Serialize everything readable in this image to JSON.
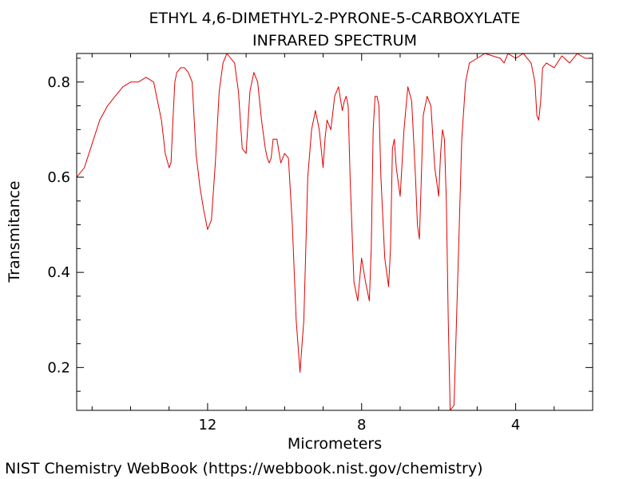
{
  "chart_data": {
    "type": "line",
    "title": "ETHYL 4,6-DIMETHYL-2-PYRONE-5-CARBOXYLATE",
    "subtitle": "INFRARED SPECTRUM",
    "xlabel": "Micrometers",
    "ylabel": "Transmitance",
    "x_reversed": true,
    "xlim": [
      15.4,
      2.0
    ],
    "ylim": [
      0.11,
      0.86
    ],
    "x_ticks": [
      12,
      8,
      4
    ],
    "y_ticks": [
      0.2,
      0.4,
      0.6,
      0.8
    ],
    "x_tick_labels": [
      "12",
      "8",
      "4"
    ],
    "y_tick_labels": [
      "0.2",
      "0.4",
      "0.6",
      "0.8"
    ],
    "grid": false,
    "series": [
      {
        "color": "#e00000",
        "x": [
          15.4,
          15.2,
          15.0,
          14.8,
          14.6,
          14.4,
          14.2,
          14.0,
          13.8,
          13.6,
          13.4,
          13.2,
          13.1,
          13.0,
          12.95,
          12.9,
          12.85,
          12.8,
          12.7,
          12.6,
          12.5,
          12.4,
          12.3,
          12.2,
          12.1,
          12.0,
          11.9,
          11.8,
          11.7,
          11.6,
          11.55,
          11.5,
          11.45,
          11.4,
          11.3,
          11.2,
          11.1,
          11.0,
          10.9,
          10.8,
          10.7,
          10.6,
          10.5,
          10.45,
          10.4,
          10.35,
          10.3,
          10.2,
          10.1,
          10.0,
          9.9,
          9.8,
          9.7,
          9.6,
          9.5,
          9.4,
          9.3,
          9.2,
          9.1,
          9.05,
          9.0,
          8.95,
          8.9,
          8.8,
          8.7,
          8.6,
          8.5,
          8.45,
          8.4,
          8.35,
          8.3,
          8.2,
          8.1,
          8.0,
          7.9,
          7.8,
          7.75,
          7.7,
          7.65,
          7.6,
          7.55,
          7.5,
          7.4,
          7.3,
          7.25,
          7.2,
          7.15,
          7.1,
          7.0,
          6.9,
          6.8,
          6.7,
          6.6,
          6.55,
          6.5,
          6.4,
          6.3,
          6.2,
          6.1,
          6.0,
          5.95,
          5.9,
          5.85,
          5.8,
          5.75,
          5.7,
          5.6,
          5.5,
          5.4,
          5.3,
          5.2,
          5.0,
          4.8,
          4.6,
          4.4,
          4.3,
          4.2,
          4.0,
          3.8,
          3.6,
          3.5,
          3.45,
          3.4,
          3.35,
          3.3,
          3.2,
          3.0,
          2.8,
          2.6,
          2.4,
          2.2,
          2.0
        ],
        "y": [
          0.6,
          0.62,
          0.67,
          0.72,
          0.75,
          0.77,
          0.79,
          0.8,
          0.8,
          0.81,
          0.8,
          0.72,
          0.65,
          0.62,
          0.63,
          0.72,
          0.8,
          0.82,
          0.83,
          0.83,
          0.82,
          0.8,
          0.65,
          0.58,
          0.53,
          0.49,
          0.51,
          0.63,
          0.78,
          0.84,
          0.85,
          0.86,
          0.855,
          0.85,
          0.84,
          0.78,
          0.66,
          0.65,
          0.78,
          0.82,
          0.8,
          0.72,
          0.66,
          0.64,
          0.63,
          0.64,
          0.68,
          0.68,
          0.63,
          0.65,
          0.64,
          0.5,
          0.3,
          0.19,
          0.3,
          0.6,
          0.7,
          0.74,
          0.7,
          0.66,
          0.62,
          0.68,
          0.72,
          0.7,
          0.77,
          0.79,
          0.74,
          0.76,
          0.77,
          0.75,
          0.6,
          0.38,
          0.34,
          0.43,
          0.38,
          0.34,
          0.45,
          0.7,
          0.77,
          0.77,
          0.75,
          0.6,
          0.43,
          0.37,
          0.45,
          0.66,
          0.68,
          0.62,
          0.56,
          0.7,
          0.79,
          0.76,
          0.6,
          0.5,
          0.47,
          0.73,
          0.77,
          0.75,
          0.62,
          0.56,
          0.65,
          0.7,
          0.68,
          0.55,
          0.3,
          0.11,
          0.12,
          0.4,
          0.68,
          0.8,
          0.84,
          0.85,
          0.86,
          0.855,
          0.85,
          0.84,
          0.86,
          0.85,
          0.86,
          0.84,
          0.8,
          0.73,
          0.72,
          0.76,
          0.83,
          0.84,
          0.83,
          0.855,
          0.84,
          0.86,
          0.85,
          0.85
        ]
      }
    ]
  },
  "footer": {
    "credit": "NIST Chemistry WebBook (https://webbook.nist.gov/chemistry)"
  }
}
